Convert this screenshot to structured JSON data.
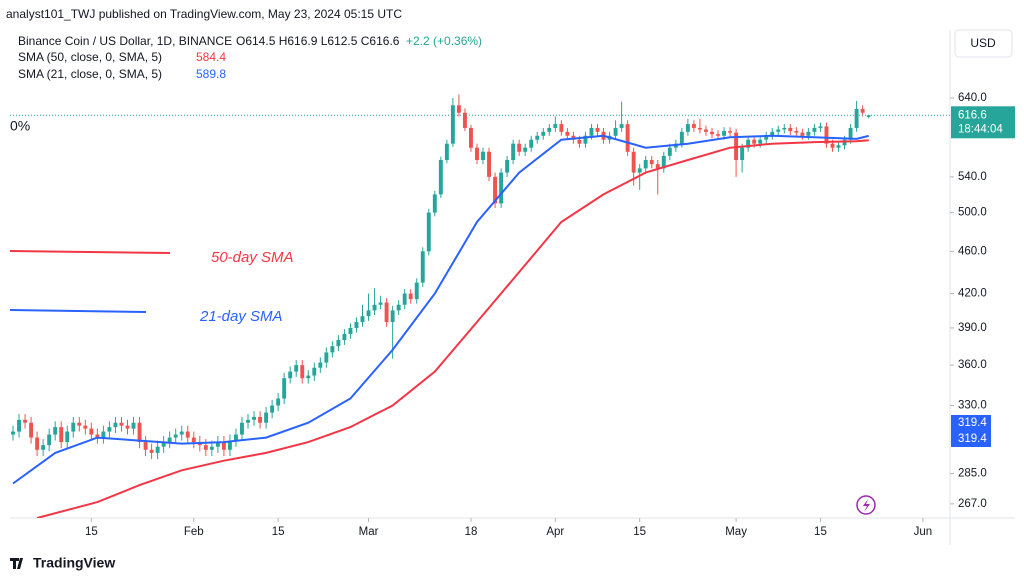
{
  "header": {
    "published": "analyst101_TWJ published on TradingView.com, May 23, 2024 05:15 UTC",
    "symbol": "Binance Coin / US Dollar, 1D, BINANCE",
    "ohlc": "O614.5 H616.9 L612.5 C616.6",
    "change": "+2.2 (+0.36%)",
    "currency": "USD",
    "scale_label": "0%"
  },
  "chart_data": {
    "type": "candlestick",
    "up_color": "#26a69a",
    "down_color": "#ef5350",
    "xlim": [
      -0.5,
      155.5
    ],
    "ylim": [
      259,
      733
    ],
    "log_scale": true,
    "grid": false,
    "xticks": [
      {
        "value": 13,
        "label": "15"
      },
      {
        "value": 30,
        "label": "Feb"
      },
      {
        "value": 44,
        "label": "15"
      },
      {
        "value": 59,
        "label": "Mar"
      },
      {
        "value": 76,
        "label": "18"
      },
      {
        "value": 90,
        "label": "Apr"
      },
      {
        "value": 104,
        "label": "15"
      },
      {
        "value": 120,
        "label": "May"
      },
      {
        "value": 134,
        "label": "15"
      },
      {
        "value": 151,
        "label": "Jun"
      }
    ],
    "yticks": [
      {
        "value": 267,
        "label": "267.0"
      },
      {
        "value": 285,
        "label": "285.0"
      },
      {
        "value": 330,
        "label": "330.0"
      },
      {
        "value": 360,
        "label": "360.0"
      },
      {
        "value": 390,
        "label": "390.0"
      },
      {
        "value": 420,
        "label": "420.0"
      },
      {
        "value": 460,
        "label": "460.0"
      },
      {
        "value": 500,
        "label": "500.0"
      },
      {
        "value": 540,
        "label": "540.0"
      },
      {
        "value": 640,
        "label": "640.0"
      }
    ],
    "open": [
      310,
      312,
      320,
      318,
      308,
      300,
      303,
      310,
      315,
      305,
      312,
      318,
      316,
      314,
      310,
      308,
      312,
      315,
      318,
      316,
      314,
      318,
      305,
      300,
      298,
      302,
      305,
      308,
      310,
      312,
      308,
      305,
      303,
      300,
      302,
      305,
      300,
      306,
      310,
      318,
      320,
      322,
      318,
      325,
      330,
      335,
      350,
      355,
      360,
      350,
      352,
      358,
      362,
      370,
      375,
      380,
      385,
      390,
      395,
      400,
      405,
      410,
      412,
      395,
      405,
      410,
      420,
      415,
      430,
      460,
      500,
      520,
      560,
      580,
      630,
      620,
      600,
      575,
      560,
      570,
      540,
      510,
      545,
      560,
      580,
      570,
      575,
      585,
      590,
      595,
      600,
      605,
      595,
      590,
      585,
      580,
      590,
      600,
      595,
      585,
      590,
      600,
      605,
      570,
      545,
      550,
      560,
      555,
      550,
      565,
      575,
      580,
      595,
      605,
      600,
      598,
      595,
      592,
      590,
      596,
      594,
      560,
      575,
      585,
      580,
      585,
      590,
      595,
      598,
      600,
      596,
      594,
      590,
      595,
      600,
      602,
      580,
      575,
      578,
      585,
      600,
      625,
      614.5
    ],
    "high": [
      316,
      324,
      324,
      322,
      312,
      307,
      314,
      319,
      319,
      316,
      322,
      322,
      320,
      318,
      314,
      316,
      319,
      322,
      322,
      320,
      322,
      322,
      309,
      304,
      306,
      309,
      312,
      314,
      316,
      316,
      312,
      309,
      307,
      306,
      309,
      309,
      310,
      314,
      322,
      324,
      326,
      326,
      329,
      334,
      339,
      354,
      359,
      364,
      364,
      356,
      362,
      366,
      374,
      379,
      384,
      389,
      394,
      399,
      410,
      420,
      425,
      418,
      416,
      409,
      414,
      424,
      424,
      434,
      464,
      504,
      524,
      564,
      585,
      640,
      645,
      626,
      604,
      580,
      575,
      575,
      545,
      550,
      565,
      585,
      585,
      580,
      590,
      595,
      600,
      605,
      615,
      610,
      600,
      595,
      590,
      595,
      605,
      605,
      600,
      595,
      610,
      635,
      610,
      575,
      555,
      565,
      565,
      560,
      570,
      580,
      585,
      600,
      612,
      610,
      612,
      603,
      600,
      597,
      601,
      601,
      599,
      580,
      590,
      590,
      590,
      595,
      600,
      603,
      605,
      605,
      601,
      599,
      600,
      605,
      607,
      607,
      585,
      583,
      590,
      605,
      636,
      630,
      616.9
    ],
    "low": [
      306,
      308,
      314,
      304,
      296,
      296,
      299,
      306,
      301,
      301,
      308,
      312,
      310,
      306,
      304,
      304,
      308,
      311,
      312,
      310,
      310,
      301,
      296,
      294,
      294,
      298,
      301,
      304,
      306,
      304,
      301,
      299,
      296,
      296,
      298,
      296,
      296,
      302,
      306,
      314,
      316,
      314,
      314,
      321,
      326,
      331,
      346,
      351,
      346,
      346,
      348,
      354,
      358,
      366,
      371,
      376,
      381,
      386,
      391,
      396,
      401,
      406,
      391,
      365,
      401,
      406,
      411,
      411,
      426,
      456,
      496,
      516,
      556,
      576,
      615,
      596,
      570,
      555,
      555,
      535,
      505,
      505,
      540,
      555,
      565,
      565,
      570,
      580,
      585,
      590,
      595,
      590,
      585,
      580,
      575,
      575,
      585,
      590,
      580,
      580,
      585,
      595,
      565,
      530,
      525,
      545,
      550,
      520,
      545,
      560,
      570,
      575,
      590,
      595,
      593,
      590,
      587,
      585,
      585,
      589,
      540,
      545,
      570,
      575,
      575,
      580,
      585,
      590,
      593,
      591,
      589,
      585,
      585,
      590,
      595,
      575,
      570,
      570,
      573,
      580,
      595,
      615,
      612.5
    ],
    "close": [
      312,
      320,
      318,
      308,
      300,
      303,
      310,
      315,
      305,
      312,
      318,
      316,
      314,
      310,
      308,
      312,
      315,
      318,
      316,
      314,
      318,
      305,
      300,
      298,
      302,
      305,
      308,
      310,
      312,
      308,
      305,
      303,
      300,
      302,
      305,
      300,
      306,
      310,
      318,
      320,
      322,
      318,
      325,
      330,
      335,
      350,
      355,
      360,
      350,
      352,
      358,
      362,
      370,
      375,
      380,
      385,
      390,
      395,
      400,
      405,
      410,
      412,
      395,
      405,
      410,
      420,
      415,
      430,
      460,
      500,
      520,
      560,
      580,
      630,
      620,
      600,
      575,
      560,
      570,
      540,
      510,
      545,
      560,
      580,
      570,
      575,
      585,
      590,
      595,
      600,
      605,
      595,
      590,
      585,
      580,
      590,
      600,
      595,
      585,
      590,
      600,
      605,
      570,
      545,
      550,
      560,
      555,
      550,
      565,
      575,
      580,
      595,
      605,
      600,
      598,
      595,
      592,
      590,
      596,
      594,
      560,
      575,
      585,
      580,
      585,
      590,
      595,
      598,
      600,
      596,
      594,
      590,
      595,
      600,
      602,
      580,
      575,
      578,
      585,
      600,
      625,
      620,
      616.6
    ],
    "countdown": "18:44:04",
    "axis_tags": [
      "319.4",
      "319.4"
    ],
    "series": [
      {
        "name": "SMA (50, close, 0, SMA, 5)",
        "annotation": "50-day SMA",
        "color": "#f23645",
        "x": [
          4,
          14,
          21,
          28,
          35,
          42,
          49,
          56,
          63,
          70,
          77,
          84,
          91,
          98,
          105,
          112,
          119,
          126,
          133,
          140,
          142
        ],
        "values": [
          259,
          268,
          278,
          287,
          293,
          298,
          305,
          315,
          330,
          355,
          395,
          440,
          490,
          520,
          545,
          560,
          575,
          580,
          582,
          583,
          584.4
        ]
      },
      {
        "name": "SMA (21, close, 0, SMA, 5)",
        "annotation": "21-day SMA",
        "color": "#2962ff",
        "x": [
          0,
          7,
          14,
          21,
          28,
          35,
          42,
          49,
          56,
          63,
          70,
          77,
          84,
          91,
          98,
          105,
          112,
          119,
          126,
          133,
          140,
          142
        ],
        "values": [
          279,
          298,
          308,
          306,
          304,
          305,
          308,
          318,
          335,
          372,
          420,
          490,
          545,
          585,
          590,
          575,
          580,
          588,
          590,
          588,
          586,
          589.8
        ]
      }
    ]
  },
  "footer": {
    "brand": "TradingView"
  }
}
